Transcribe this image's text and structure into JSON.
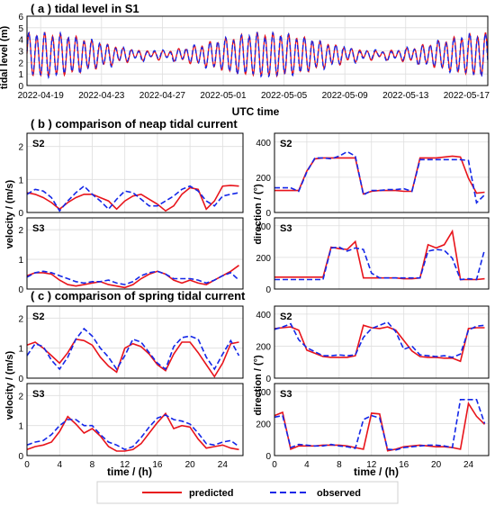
{
  "colors": {
    "predicted": "#e8141b",
    "observed": "#1427e8",
    "grid": "#dedede",
    "axis": "#000000"
  },
  "legend": {
    "predicted": "predicted",
    "observed": "observed"
  },
  "chart_data": [
    {
      "id": "a",
      "type": "line",
      "title": "( a ) tidal level in S1",
      "xlabel": "UTC time",
      "ylabel": "tidal level  (m)",
      "ylim": [
        0,
        6
      ],
      "yticks": [
        "0",
        "1",
        "2",
        "3",
        "4",
        "5",
        "6"
      ],
      "xticks": [
        "2022-04-19",
        "2022-04-23",
        "2022-04-27",
        "2022-05-01",
        "2022-05-05",
        "2022-05-09",
        "2022-05-13",
        "2022-05-17"
      ],
      "grid": true,
      "xrange_days": [
        "2022-04-18",
        "2022-05-18"
      ],
      "series": [
        {
          "name": "predicted",
          "style": "solid",
          "note": "semidiurnal tide ~2 cycles/day, range ~0.8-4.6 m at spring, ~1.8-3.4 m at neap"
        },
        {
          "name": "observed",
          "style": "dashed",
          "note": "closely tracks predicted"
        }
      ]
    },
    {
      "id": "b",
      "type": "line",
      "title": "( b ) comparison of neap tidal current",
      "grid": true,
      "panels": [
        {
          "station": "S2",
          "ylabel": "",
          "ylim": [
            0,
            2.4
          ],
          "yticks": [
            "0",
            "1",
            "2"
          ],
          "x": [
            0,
            1,
            2,
            3,
            4,
            5,
            6,
            7,
            8,
            9,
            10,
            11,
            12,
            13,
            14,
            15,
            16,
            17,
            18,
            19,
            20,
            21,
            22,
            23,
            24,
            25,
            26
          ],
          "series": [
            {
              "name": "predicted",
              "values": [
                0.6,
                0.55,
                0.45,
                0.3,
                0.1,
                0.3,
                0.45,
                0.55,
                0.55,
                0.45,
                0.35,
                0.1,
                0.35,
                0.5,
                0.55,
                0.4,
                0.25,
                0.05,
                0.2,
                0.55,
                0.75,
                0.7,
                0.1,
                0.35,
                0.8,
                0.82,
                0.8
              ]
            },
            {
              "name": "observed",
              "values": [
                0.55,
                0.7,
                0.65,
                0.45,
                0.05,
                0.35,
                0.6,
                0.8,
                0.55,
                0.35,
                0.1,
                0.4,
                0.65,
                0.6,
                0.4,
                0.2,
                0.2,
                0.35,
                0.5,
                0.7,
                0.8,
                0.65,
                0.35,
                0.2,
                0.5,
                0.55,
                0.6
              ]
            }
          ]
        },
        {
          "station": "S3",
          "ylabel": "velocity / (m/s)",
          "ylim": [
            0,
            2.4
          ],
          "yticks": [
            "0",
            "1",
            "2"
          ],
          "x": [
            0,
            1,
            2,
            3,
            4,
            5,
            6,
            7,
            8,
            9,
            10,
            11,
            12,
            13,
            14,
            15,
            16,
            17,
            18,
            19,
            20,
            21,
            22,
            23,
            24,
            25,
            26
          ],
          "series": [
            {
              "name": "predicted",
              "values": [
                0.45,
                0.55,
                0.55,
                0.5,
                0.3,
                0.15,
                0.1,
                0.15,
                0.2,
                0.25,
                0.15,
                0.1,
                0.05,
                0.15,
                0.35,
                0.5,
                0.6,
                0.5,
                0.3,
                0.2,
                0.3,
                0.2,
                0.15,
                0.3,
                0.45,
                0.6,
                0.8
              ]
            },
            {
              "name": "observed",
              "values": [
                0.4,
                0.55,
                0.6,
                0.55,
                0.45,
                0.35,
                0.25,
                0.2,
                0.25,
                0.25,
                0.3,
                0.2,
                0.15,
                0.25,
                0.45,
                0.55,
                0.6,
                0.5,
                0.35,
                0.35,
                0.35,
                0.3,
                0.2,
                0.3,
                0.45,
                0.55,
                0.3
              ]
            }
          ]
        },
        {
          "station": "S2",
          "ylabel": "",
          "ylim": [
            0,
            450
          ],
          "yticks": [
            "0",
            "200",
            "400"
          ],
          "x": [
            0,
            1,
            2,
            3,
            4,
            5,
            6,
            7,
            8,
            9,
            10,
            11,
            12,
            13,
            14,
            15,
            16,
            17,
            18,
            19,
            20,
            21,
            22,
            23,
            24,
            25,
            26
          ],
          "series": [
            {
              "name": "predicted",
              "values": [
                125,
                125,
                125,
                125,
                235,
                305,
                310,
                310,
                310,
                310,
                310,
                105,
                120,
                125,
                125,
                125,
                120,
                120,
                310,
                310,
                310,
                315,
                320,
                315,
                195,
                110,
                115
              ]
            },
            {
              "name": "observed",
              "values": [
                140,
                140,
                140,
                120,
                230,
                310,
                310,
                305,
                320,
                345,
                320,
                100,
                125,
                125,
                130,
                130,
                135,
                120,
                300,
                300,
                300,
                300,
                300,
                300,
                295,
                55,
                100
              ]
            }
          ]
        },
        {
          "station": "S3",
          "ylabel": "direction / (°)",
          "ylim": [
            0,
            450
          ],
          "yticks": [
            "0",
            "200",
            "400"
          ],
          "x": [
            0,
            1,
            2,
            3,
            4,
            5,
            6,
            7,
            8,
            9,
            10,
            11,
            12,
            13,
            14,
            15,
            16,
            17,
            18,
            19,
            20,
            21,
            22,
            23,
            24,
            25,
            26
          ],
          "series": [
            {
              "name": "predicted",
              "values": [
                75,
                75,
                75,
                75,
                75,
                75,
                75,
                265,
                255,
                250,
                300,
                70,
                70,
                70,
                70,
                70,
                65,
                65,
                70,
                280,
                260,
                280,
                365,
                60,
                60,
                60,
                65
              ]
            },
            {
              "name": "observed",
              "values": [
                60,
                60,
                60,
                60,
                60,
                60,
                60,
                260,
                265,
                240,
                260,
                250,
                100,
                70,
                70,
                70,
                70,
                70,
                70,
                240,
                250,
                245,
                195,
                60,
                65,
                60,
                250
              ]
            }
          ]
        }
      ]
    },
    {
      "id": "c",
      "type": "line",
      "title": "( c ) comparison of spring tidal current",
      "xlabel": "time / (h)",
      "xticks": [
        "0",
        "4",
        "8",
        "12",
        "16",
        "20",
        "24"
      ],
      "grid": true,
      "panels": [
        {
          "station": "S2",
          "ylabel": "",
          "ylim": [
            0,
            2.4
          ],
          "yticks": [
            "0",
            "1",
            "2"
          ],
          "x": [
            0,
            1,
            2,
            3,
            4,
            5,
            6,
            7,
            8,
            9,
            10,
            11,
            12,
            13,
            14,
            15,
            16,
            17,
            18,
            19,
            20,
            21,
            22,
            23,
            24,
            25,
            26
          ],
          "series": [
            {
              "name": "predicted",
              "values": [
                1.1,
                1.2,
                1.0,
                0.75,
                0.5,
                0.85,
                1.3,
                1.25,
                1.1,
                0.7,
                0.4,
                0.2,
                1.0,
                1.15,
                1.05,
                0.8,
                0.45,
                0.25,
                0.8,
                1.2,
                1.2,
                0.85,
                0.45,
                0.05,
                0.5,
                1.15,
                1.2
              ]
            },
            {
              "name": "observed",
              "values": [
                0.75,
                1.15,
                1.05,
                0.6,
                0.3,
                0.7,
                1.3,
                1.65,
                1.4,
                1.0,
                0.7,
                0.3,
                0.75,
                1.3,
                1.2,
                0.85,
                0.5,
                0.3,
                1.05,
                1.35,
                1.4,
                1.3,
                0.7,
                0.3,
                0.8,
                1.25,
                0.75
              ]
            }
          ]
        },
        {
          "station": "S3",
          "ylabel": "velocity / (m/s)",
          "ylim": [
            0,
            2.4
          ],
          "yticks": [
            "0",
            "1",
            "2"
          ],
          "x": [
            0,
            1,
            2,
            3,
            4,
            5,
            6,
            7,
            8,
            9,
            10,
            11,
            12,
            13,
            14,
            15,
            16,
            17,
            18,
            19,
            20,
            21,
            22,
            23,
            24,
            25,
            26
          ],
          "series": [
            {
              "name": "predicted",
              "values": [
                0.2,
                0.3,
                0.35,
                0.45,
                0.8,
                1.3,
                1.05,
                0.75,
                0.9,
                0.65,
                0.3,
                0.15,
                0.15,
                0.2,
                0.4,
                0.75,
                1.1,
                1.4,
                0.9,
                1.0,
                0.95,
                0.55,
                0.25,
                0.3,
                0.35,
                0.25,
                0.2
              ]
            },
            {
              "name": "observed",
              "values": [
                0.35,
                0.45,
                0.5,
                0.7,
                1.0,
                1.2,
                1.2,
                1.0,
                1.0,
                0.7,
                0.45,
                0.35,
                0.2,
                0.3,
                0.6,
                0.95,
                1.25,
                1.35,
                1.2,
                1.15,
                1.05,
                0.75,
                0.4,
                0.35,
                0.45,
                0.5,
                0.3
              ]
            }
          ]
        },
        {
          "station": "S2",
          "ylabel": "",
          "ylim": [
            0,
            450
          ],
          "yticks": [
            "0",
            "200",
            "400"
          ],
          "x": [
            0,
            1,
            2,
            3,
            4,
            5,
            6,
            7,
            8,
            9,
            10,
            11,
            12,
            13,
            14,
            15,
            16,
            17,
            18,
            19,
            20,
            21,
            22,
            23,
            24,
            25,
            26
          ],
          "series": [
            {
              "name": "predicted",
              "values": [
                310,
                315,
                320,
                300,
                175,
                155,
                135,
                130,
                130,
                130,
                140,
                330,
                315,
                310,
                320,
                300,
                235,
                170,
                135,
                130,
                130,
                125,
                125,
                105,
                310,
                315,
                315
              ]
            },
            {
              "name": "observed",
              "values": [
                305,
                320,
                340,
                240,
                190,
                165,
                140,
                140,
                145,
                140,
                145,
                255,
                310,
                330,
                350,
                290,
                180,
                200,
                145,
                140,
                135,
                140,
                130,
                150,
                300,
                325,
                330
              ]
            }
          ]
        },
        {
          "station": "S3",
          "ylabel": "direction / (°)",
          "ylim": [
            0,
            450
          ],
          "yticks": [
            "0",
            "200",
            "400"
          ],
          "x": [
            0,
            1,
            2,
            3,
            4,
            5,
            6,
            7,
            8,
            9,
            10,
            11,
            12,
            13,
            14,
            15,
            16,
            17,
            18,
            19,
            20,
            21,
            22,
            23,
            24,
            25,
            26
          ],
          "series": [
            {
              "name": "predicted",
              "values": [
                250,
                270,
                40,
                60,
                60,
                60,
                65,
                65,
                65,
                60,
                50,
                40,
                265,
                260,
                30,
                40,
                55,
                60,
                65,
                60,
                55,
                55,
                50,
                40,
                325,
                245,
                195
              ]
            },
            {
              "name": "observed",
              "values": [
                240,
                250,
                50,
                70,
                65,
                60,
                60,
                70,
                60,
                55,
                45,
                225,
                250,
                235,
                40,
                35,
                50,
                55,
                60,
                65,
                65,
                60,
                50,
                350,
                350,
                350,
                200
              ]
            }
          ]
        }
      ]
    }
  ]
}
